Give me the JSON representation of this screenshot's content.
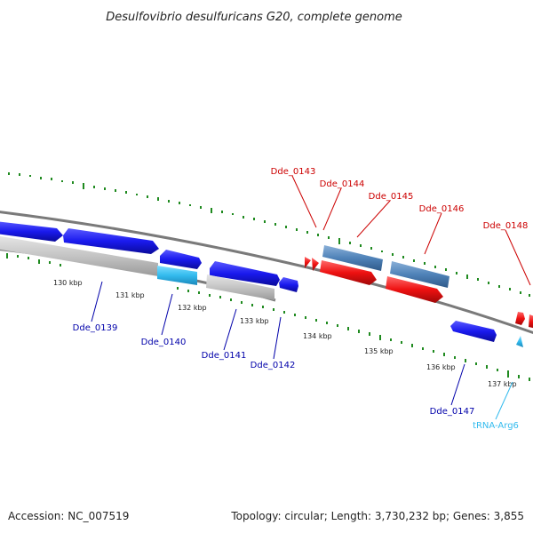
{
  "title": "Desulfovibrio desulfuricans G20, complete genome",
  "footer": {
    "accession": "Accession: NC_007519",
    "summary": "Topology: circular; Length: 3,730,232 bp; Genes: 3,855"
  },
  "ticks": [
    "130 kbp",
    "131 kbp",
    "132 kbp",
    "133 kbp",
    "134 kbp",
    "135 kbp",
    "136 kbp",
    "137 kbp"
  ],
  "genes": {
    "dde_0139": "Dde_0139",
    "dde_0140": "Dde_0140",
    "dde_0141": "Dde_0141",
    "dde_0142": "Dde_0142",
    "dde_0143": "Dde_0143",
    "dde_0144": "Dde_0144",
    "dde_0145": "Dde_0145",
    "dde_0146": "Dde_0146",
    "dde_0147": "Dde_0147",
    "dde_0148": "Dde_0148",
    "trna_arg6": "tRNA-Arg6"
  },
  "colors": {
    "forward_cds": "#ee1111",
    "reverse_cds": "#1a1aee",
    "trna": "#33bbee",
    "pseudo": "#4f82b8",
    "rna_gray": "#c4c4c4",
    "backbone": "#7a7a7a",
    "gc_ticks": "#1f8a1f"
  }
}
